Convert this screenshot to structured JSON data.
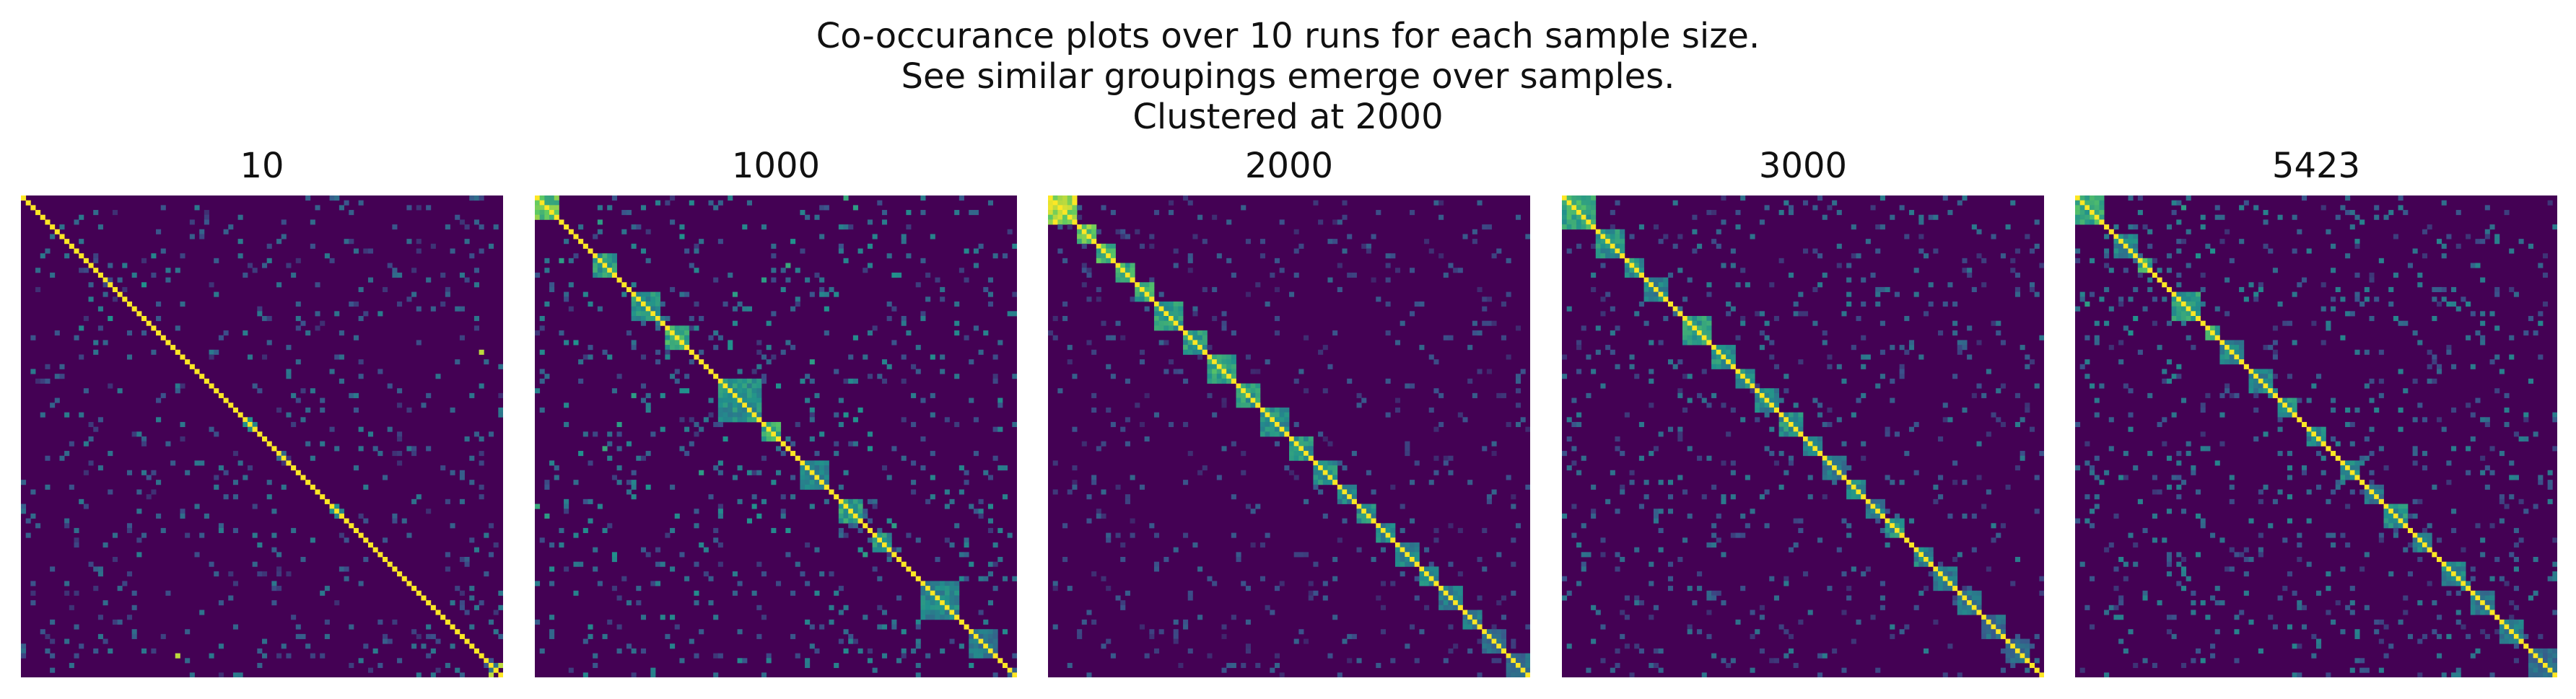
{
  "figure": {
    "suptitle_lines": [
      "Co-occurance plots over 10 runs for each sample size.",
      "See similar groupings emerge over samples.",
      "Clustered at 2000"
    ],
    "colormap": "viridis",
    "colors": {
      "low": "#440154",
      "mid": "#21918c",
      "high": "#fde725"
    }
  },
  "chart_data": [
    {
      "type": "heatmap",
      "title": "10",
      "xlabel": "",
      "ylabel": "",
      "axes": "off",
      "value_range": [
        0,
        1
      ],
      "n": 100,
      "diagonal": 1.0,
      "blocks": [],
      "cells": [
        [
          3,
          15,
          0.35
        ],
        [
          7,
          42,
          0.3
        ],
        [
          10,
          60,
          0.25
        ],
        [
          12,
          4,
          0.4
        ],
        [
          15,
          77,
          0.3
        ],
        [
          18,
          25,
          0.5
        ],
        [
          20,
          88,
          0.3
        ],
        [
          22,
          33,
          0.35
        ],
        [
          25,
          70,
          0.3
        ],
        [
          27,
          12,
          0.45
        ],
        [
          30,
          51,
          0.3
        ],
        [
          32,
          95,
          0.9
        ],
        [
          35,
          8,
          0.3
        ],
        [
          38,
          66,
          0.35
        ],
        [
          40,
          20,
          0.4
        ],
        [
          43,
          83,
          0.3
        ],
        [
          45,
          55,
          0.35
        ],
        [
          46,
          47,
          0.5
        ],
        [
          47,
          48,
          0.45
        ],
        [
          50,
          14,
          0.3
        ],
        [
          52,
          73,
          0.3
        ],
        [
          55,
          36,
          0.4
        ],
        [
          58,
          91,
          0.3
        ],
        [
          60,
          5,
          0.35
        ],
        [
          62,
          44,
          0.3
        ],
        [
          64,
          65,
          0.5
        ],
        [
          65,
          66,
          0.45
        ],
        [
          66,
          28,
          0.3
        ],
        [
          70,
          80,
          0.3
        ],
        [
          72,
          17,
          0.35
        ],
        [
          75,
          58,
          0.3
        ],
        [
          78,
          40,
          0.3
        ],
        [
          80,
          9,
          0.35
        ],
        [
          82,
          62,
          0.4
        ],
        [
          85,
          23,
          0.3
        ],
        [
          88,
          97,
          0.35
        ],
        [
          90,
          34,
          0.3
        ],
        [
          92,
          75,
          0.3
        ],
        [
          95,
          50,
          0.35
        ],
        [
          97,
          99,
          0.9
        ],
        [
          99,
          85,
          0.4
        ],
        [
          57,
          22,
          0.3
        ],
        [
          24,
          61,
          0.3
        ],
        [
          68,
          3,
          0.3
        ],
        [
          11,
          89,
          0.3
        ]
      ],
      "noise_density": 0.05,
      "noise_level": 0.28
    },
    {
      "type": "heatmap",
      "title": "1000",
      "xlabel": "",
      "ylabel": "",
      "axes": "off",
      "value_range": [
        0,
        1
      ],
      "n": 100,
      "diagonal": 1.0,
      "blocks": [
        [
          0,
          5,
          0.7
        ],
        [
          12,
          5,
          0.55
        ],
        [
          20,
          6,
          0.5
        ],
        [
          27,
          5,
          0.6
        ],
        [
          38,
          9,
          0.5
        ],
        [
          47,
          4,
          0.6
        ],
        [
          55,
          6,
          0.45
        ],
        [
          63,
          5,
          0.55
        ],
        [
          70,
          4,
          0.5
        ],
        [
          80,
          8,
          0.45
        ],
        [
          90,
          6,
          0.4
        ]
      ],
      "cells": [
        [
          0,
          64,
          0.6
        ],
        [
          2,
          66,
          0.55
        ],
        [
          5,
          13,
          0.55
        ],
        [
          8,
          30,
          0.5
        ],
        [
          10,
          20,
          0.45
        ],
        [
          14,
          52,
          0.6
        ],
        [
          16,
          74,
          0.5
        ],
        [
          20,
          41,
          0.55
        ],
        [
          26,
          87,
          0.45
        ],
        [
          31,
          40,
          0.5
        ],
        [
          34,
          57,
          0.55
        ],
        [
          38,
          55,
          0.45
        ],
        [
          40,
          30,
          0.5
        ],
        [
          44,
          67,
          0.5
        ],
        [
          47,
          17,
          0.55
        ],
        [
          50,
          39,
          0.5
        ],
        [
          52,
          69,
          0.5
        ],
        [
          53,
          9,
          0.5
        ],
        [
          56,
          88,
          0.45
        ],
        [
          60,
          23,
          0.5
        ],
        [
          64,
          45,
          0.5
        ],
        [
          66,
          46,
          0.5
        ],
        [
          68,
          74,
          0.55
        ],
        [
          72,
          34,
          0.45
        ],
        [
          76,
          26,
          0.4
        ],
        [
          79,
          92,
          0.4
        ],
        [
          84,
          36,
          0.35
        ],
        [
          88,
          61,
          0.4
        ],
        [
          94,
          78,
          0.35
        ]
      ],
      "noise_density": 0.07,
      "noise_level": 0.32
    },
    {
      "type": "heatmap",
      "title": "2000",
      "xlabel": "",
      "ylabel": "",
      "axes": "off",
      "value_range": [
        0,
        1
      ],
      "n": 100,
      "diagonal": 1.0,
      "blocks": [
        [
          0,
          6,
          0.85
        ],
        [
          6,
          4,
          0.75
        ],
        [
          10,
          4,
          0.65
        ],
        [
          14,
          4,
          0.6
        ],
        [
          18,
          4,
          0.6
        ],
        [
          22,
          6,
          0.55
        ],
        [
          28,
          5,
          0.55
        ],
        [
          33,
          6,
          0.6
        ],
        [
          39,
          5,
          0.55
        ],
        [
          44,
          6,
          0.5
        ],
        [
          50,
          5,
          0.5
        ],
        [
          55,
          5,
          0.5
        ],
        [
          60,
          4,
          0.45
        ],
        [
          64,
          4,
          0.5
        ],
        [
          68,
          4,
          0.45
        ],
        [
          72,
          5,
          0.45
        ],
        [
          77,
          4,
          0.45
        ],
        [
          81,
          5,
          0.4
        ],
        [
          86,
          4,
          0.4
        ],
        [
          90,
          5,
          0.35
        ],
        [
          95,
          5,
          0.35
        ]
      ],
      "cells": [
        [
          2,
          40,
          0.3
        ],
        [
          5,
          60,
          0.3
        ],
        [
          12,
          70,
          0.3
        ],
        [
          15,
          85,
          0.25
        ],
        [
          20,
          50,
          0.3
        ],
        [
          30,
          72,
          0.3
        ],
        [
          35,
          12,
          0.3
        ],
        [
          40,
          80,
          0.25
        ],
        [
          45,
          22,
          0.3
        ],
        [
          52,
          90,
          0.25
        ],
        [
          58,
          35,
          0.25
        ],
        [
          62,
          8,
          0.25
        ],
        [
          70,
          45,
          0.25
        ],
        [
          75,
          15,
          0.25
        ],
        [
          82,
          55,
          0.25
        ],
        [
          88,
          28,
          0.25
        ]
      ],
      "noise_density": 0.05,
      "noise_level": 0.22
    },
    {
      "type": "heatmap",
      "title": "3000",
      "xlabel": "",
      "ylabel": "",
      "axes": "off",
      "value_range": [
        0,
        1
      ],
      "n": 100,
      "diagonal": 1.0,
      "blocks": [
        [
          0,
          7,
          0.6
        ],
        [
          7,
          6,
          0.5
        ],
        [
          13,
          4,
          0.5
        ],
        [
          17,
          5,
          0.45
        ],
        [
          25,
          6,
          0.55
        ],
        [
          31,
          5,
          0.5
        ],
        [
          36,
          4,
          0.5
        ],
        [
          40,
          5,
          0.45
        ],
        [
          45,
          5,
          0.5
        ],
        [
          50,
          4,
          0.45
        ],
        [
          54,
          5,
          0.4
        ],
        [
          59,
          4,
          0.45
        ],
        [
          63,
          4,
          0.4
        ],
        [
          67,
          4,
          0.5
        ],
        [
          73,
          4,
          0.45
        ],
        [
          77,
          5,
          0.4
        ],
        [
          82,
          5,
          0.4
        ],
        [
          87,
          5,
          0.35
        ],
        [
          92,
          5,
          0.35
        ]
      ],
      "cells": [
        [
          3,
          45,
          0.4
        ],
        [
          6,
          60,
          0.35
        ],
        [
          10,
          28,
          0.4
        ],
        [
          12,
          75,
          0.35
        ],
        [
          18,
          38,
          0.4
        ],
        [
          22,
          65,
          0.35
        ],
        [
          27,
          84,
          0.3
        ],
        [
          33,
          14,
          0.35
        ],
        [
          38,
          58,
          0.4
        ],
        [
          43,
          79,
          0.3
        ],
        [
          48,
          24,
          0.35
        ],
        [
          53,
          71,
          0.3
        ],
        [
          57,
          35,
          0.35
        ],
        [
          61,
          88,
          0.3
        ],
        [
          66,
          19,
          0.3
        ],
        [
          72,
          48,
          0.3
        ],
        [
          78,
          62,
          0.3
        ],
        [
          84,
          33,
          0.3
        ],
        [
          90,
          70,
          0.3
        ]
      ],
      "noise_density": 0.06,
      "noise_level": 0.28
    },
    {
      "type": "heatmap",
      "title": "5423",
      "xlabel": "",
      "ylabel": "",
      "axes": "off",
      "value_range": [
        0,
        1
      ],
      "n": 100,
      "diagonal": 1.0,
      "blocks": [
        [
          0,
          6,
          0.6
        ],
        [
          8,
          5,
          0.45
        ],
        [
          13,
          3,
          0.6
        ],
        [
          20,
          6,
          0.55
        ],
        [
          27,
          3,
          0.6
        ],
        [
          30,
          5,
          0.45
        ],
        [
          36,
          5,
          0.45
        ],
        [
          42,
          4,
          0.5
        ],
        [
          48,
          4,
          0.45
        ],
        [
          55,
          4,
          0.45
        ],
        [
          60,
          4,
          0.4
        ],
        [
          64,
          5,
          0.5
        ],
        [
          70,
          4,
          0.45
        ],
        [
          76,
          5,
          0.45
        ],
        [
          82,
          5,
          0.4
        ],
        [
          88,
          5,
          0.4
        ],
        [
          94,
          6,
          0.35
        ]
      ],
      "cells": [
        [
          2,
          22,
          0.55
        ],
        [
          4,
          42,
          0.4
        ],
        [
          9,
          58,
          0.45
        ],
        [
          11,
          28,
          0.5
        ],
        [
          16,
          66,
          0.4
        ],
        [
          19,
          38,
          0.45
        ],
        [
          23,
          79,
          0.4
        ],
        [
          25,
          12,
          0.5
        ],
        [
          29,
          55,
          0.45
        ],
        [
          33,
          87,
          0.35
        ],
        [
          37,
          20,
          0.45
        ],
        [
          40,
          68,
          0.4
        ],
        [
          45,
          30,
          0.4
        ],
        [
          50,
          82,
          0.35
        ],
        [
          53,
          15,
          0.4
        ],
        [
          58,
          44,
          0.35
        ],
        [
          62,
          90,
          0.3
        ],
        [
          67,
          26,
          0.35
        ],
        [
          72,
          53,
          0.35
        ],
        [
          78,
          35,
          0.3
        ],
        [
          85,
          60,
          0.3
        ],
        [
          91,
          75,
          0.3
        ]
      ],
      "noise_density": 0.07,
      "noise_level": 0.3
    }
  ]
}
